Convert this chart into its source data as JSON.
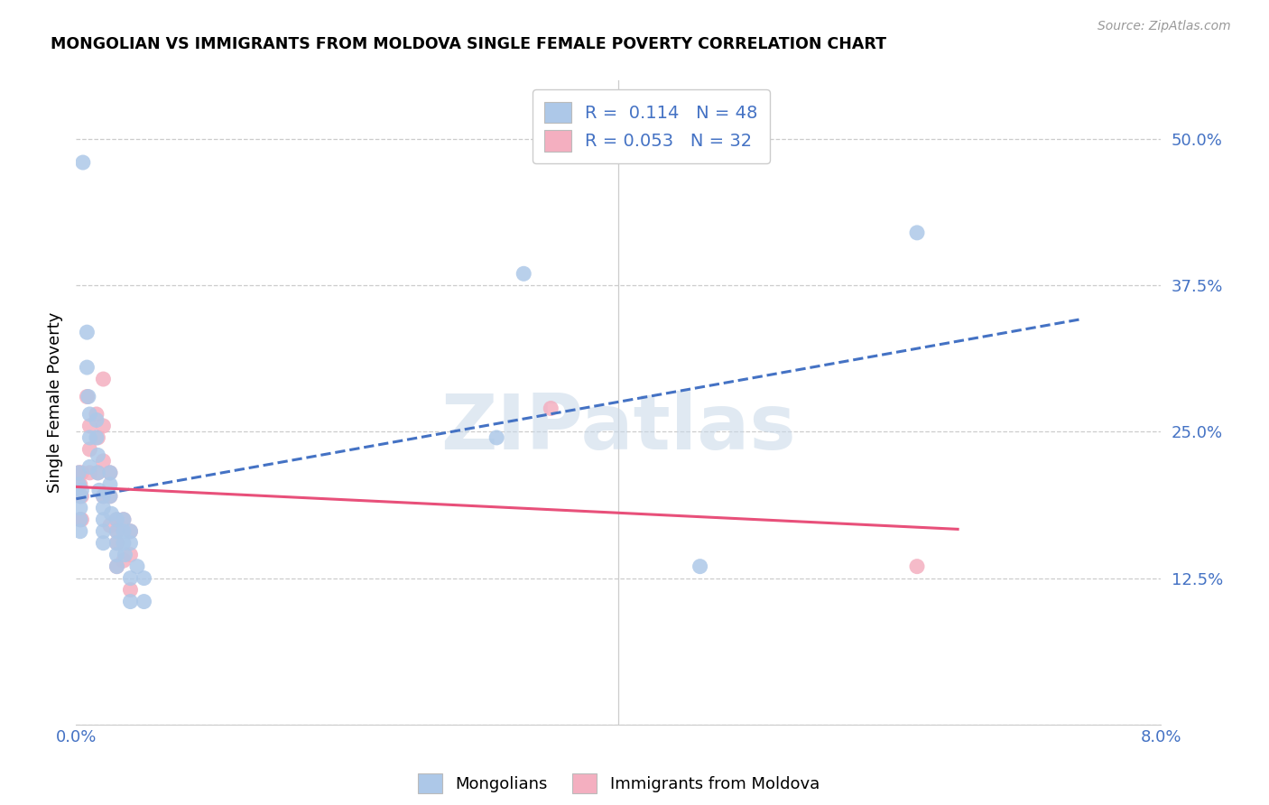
{
  "title": "MONGOLIAN VS IMMIGRANTS FROM MOLDOVA SINGLE FEMALE POVERTY CORRELATION CHART",
  "source": "Source: ZipAtlas.com",
  "ylabel": "Single Female Poverty",
  "xlim": [
    0.0,
    0.08
  ],
  "ylim": [
    0.0,
    0.55
  ],
  "ytick_vals": [
    0.0,
    0.125,
    0.25,
    0.375,
    0.5
  ],
  "ytick_labels": [
    "",
    "12.5%",
    "25.0%",
    "37.5%",
    "50.0%"
  ],
  "xtick_vals": [
    0.0,
    0.01,
    0.02,
    0.03,
    0.04,
    0.05,
    0.06,
    0.07,
    0.08
  ],
  "xtick_labels": [
    "0.0%",
    "",
    "",
    "",
    "",
    "",
    "",
    "",
    "8.0%"
  ],
  "legend_R_mongolian": "0.114",
  "legend_N_mongolian": "48",
  "legend_R_moldova": "0.053",
  "legend_N_moldova": "32",
  "mongolian_color": "#adc8e8",
  "moldova_color": "#f4afc0",
  "mongolian_line_color": "#4472c4",
  "moldova_line_color": "#e8507a",
  "watermark": "ZIPatlas",
  "grid_color": "#cccccc",
  "mongolian_scatter_x": [
    0.0002,
    0.0002,
    0.0003,
    0.0003,
    0.0003,
    0.0003,
    0.0004,
    0.0008,
    0.0008,
    0.0009,
    0.001,
    0.001,
    0.001,
    0.0015,
    0.0015,
    0.0016,
    0.0016,
    0.0017,
    0.002,
    0.002,
    0.002,
    0.002,
    0.002,
    0.0025,
    0.0025,
    0.0025,
    0.0026,
    0.003,
    0.003,
    0.003,
    0.003,
    0.003,
    0.0035,
    0.0035,
    0.0035,
    0.0036,
    0.004,
    0.004,
    0.004,
    0.004,
    0.0045,
    0.005,
    0.005,
    0.031,
    0.033,
    0.046,
    0.062,
    0.0005
  ],
  "mongolian_scatter_y": [
    0.215,
    0.205,
    0.195,
    0.185,
    0.175,
    0.165,
    0.2,
    0.335,
    0.305,
    0.28,
    0.265,
    0.245,
    0.22,
    0.26,
    0.245,
    0.23,
    0.215,
    0.2,
    0.195,
    0.185,
    0.175,
    0.165,
    0.155,
    0.215,
    0.205,
    0.195,
    0.18,
    0.175,
    0.165,
    0.155,
    0.145,
    0.135,
    0.175,
    0.165,
    0.155,
    0.145,
    0.165,
    0.155,
    0.125,
    0.105,
    0.135,
    0.125,
    0.105,
    0.245,
    0.385,
    0.135,
    0.42,
    0.48
  ],
  "moldova_scatter_x": [
    0.0002,
    0.0003,
    0.0003,
    0.0003,
    0.0004,
    0.0004,
    0.0004,
    0.0008,
    0.001,
    0.001,
    0.001,
    0.0015,
    0.0016,
    0.0016,
    0.002,
    0.002,
    0.002,
    0.002,
    0.0025,
    0.0025,
    0.0025,
    0.003,
    0.003,
    0.003,
    0.003,
    0.0035,
    0.0035,
    0.004,
    0.004,
    0.004,
    0.035,
    0.062
  ],
  "moldova_scatter_y": [
    0.215,
    0.205,
    0.195,
    0.175,
    0.215,
    0.195,
    0.175,
    0.28,
    0.255,
    0.235,
    0.215,
    0.265,
    0.245,
    0.215,
    0.295,
    0.255,
    0.225,
    0.195,
    0.215,
    0.195,
    0.17,
    0.175,
    0.165,
    0.155,
    0.135,
    0.175,
    0.14,
    0.165,
    0.145,
    0.115,
    0.27,
    0.135
  ]
}
